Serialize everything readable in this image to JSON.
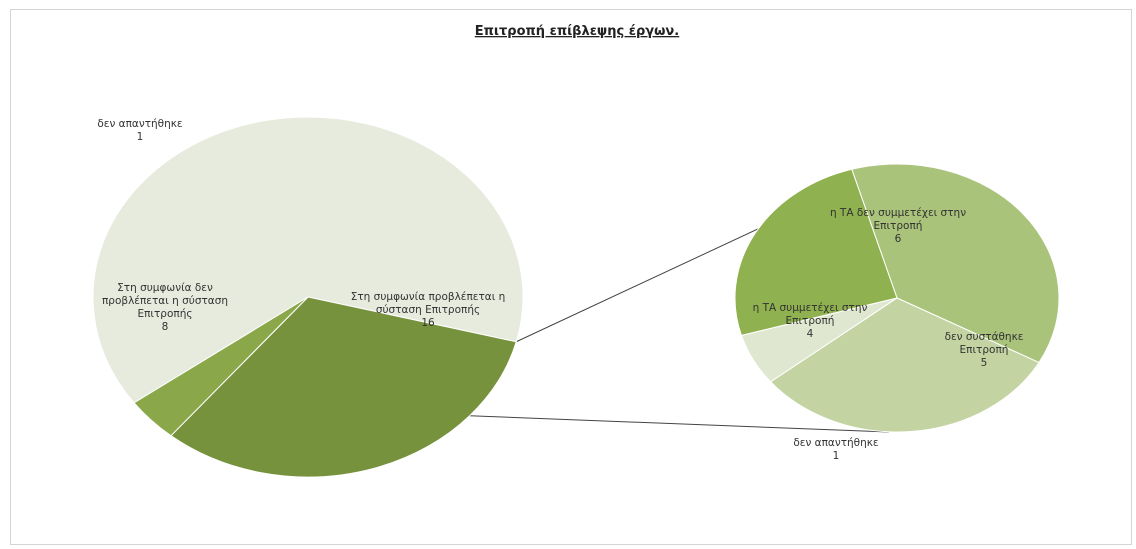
{
  "chart_data": {
    "type": "pie",
    "subtype": "pie-of-pie",
    "title": "Επιτροπή επίβλεψης έργων.",
    "primary": {
      "slices": [
        {
          "label": "Στη συμφωνία προβλέπεται η σύσταση Επιτροπής",
          "value": 16,
          "color": "#e6ebdd",
          "split": true
        },
        {
          "label": "Στη συμφωνία δεν προβλέπεται η σύσταση Επιτροπής",
          "value": 8,
          "color": "#77923c",
          "split": false
        },
        {
          "label": "δεν απαντήθηκε",
          "value": 1,
          "color": "#8aa84a",
          "split": false
        }
      ]
    },
    "secondary": {
      "slices": [
        {
          "label": "η ΤΑ δεν συμμετέχει στην Επιτροπή",
          "value": 6,
          "color": "#a9c37a"
        },
        {
          "label": "δεν συστάθηκε Επιτροπή",
          "value": 5,
          "color": "#c3d4a2"
        },
        {
          "label": "δεν απαντήθηκε",
          "value": 1,
          "color": "#dfe7d0"
        },
        {
          "label": "η ΤΑ συμμετέχει στην Επιτροπή",
          "value": 4,
          "color": "#8fb14f"
        }
      ]
    },
    "legend": "none",
    "data_labels": "category name and value"
  }
}
